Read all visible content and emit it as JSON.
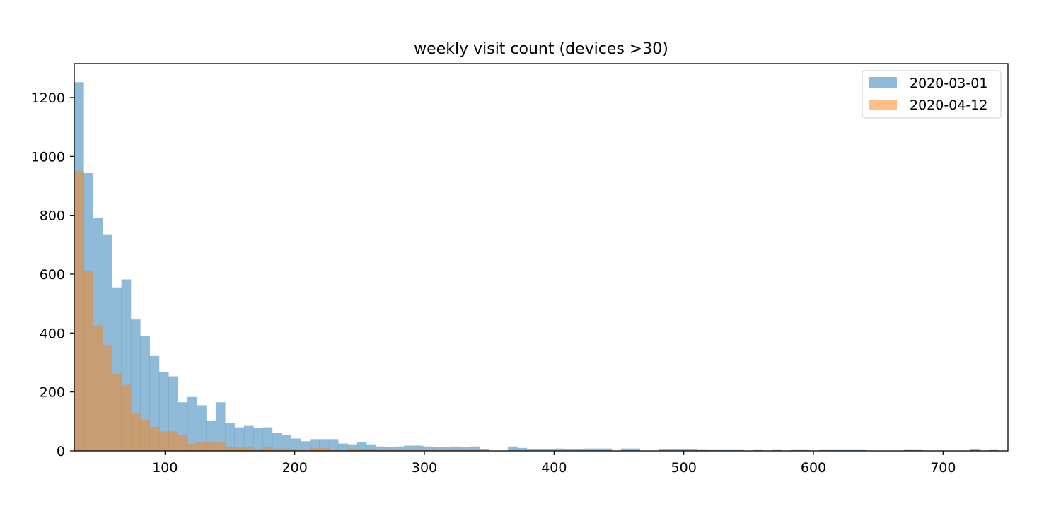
{
  "chart_data": {
    "type": "bar",
    "title": "weekly visit count (devices >30)",
    "xlabel": "",
    "ylabel": "",
    "xlim": [
      30,
      750
    ],
    "ylim": [
      0,
      1315
    ],
    "xticks": [
      100,
      200,
      300,
      400,
      500,
      600,
      700
    ],
    "yticks": [
      0,
      200,
      400,
      600,
      800,
      1000,
      1200
    ],
    "legend_position": "top-right",
    "bin_width": 7.27,
    "series": [
      {
        "name": "2020-03-01",
        "color": "#1f77b4",
        "opacity": 0.5,
        "x_start": 30,
        "values": [
          1252,
          943,
          791,
          735,
          555,
          582,
          446,
          390,
          322,
          268,
          253,
          165,
          183,
          155,
          101,
          165,
          96,
          80,
          85,
          77,
          80,
          60,
          55,
          42,
          33,
          40,
          40,
          40,
          25,
          20,
          30,
          20,
          15,
          12,
          15,
          18,
          18,
          15,
          12,
          12,
          15,
          12,
          15,
          5,
          0,
          0,
          15,
          10,
          5,
          5,
          5,
          8,
          5,
          5,
          8,
          8,
          8,
          0,
          8,
          8,
          0,
          0,
          5,
          5,
          5,
          5,
          3,
          3,
          3,
          3,
          3,
          0,
          3,
          0,
          3,
          0,
          3,
          3,
          0,
          3,
          3,
          3,
          3,
          3,
          0,
          0,
          0,
          0,
          3,
          3,
          0,
          0,
          0,
          0,
          0,
          5,
          0,
          3,
          0,
          0,
          0,
          0,
          3,
          0,
          0
        ]
      },
      {
        "name": "2020-04-12",
        "color": "#ff7f0e",
        "opacity": 0.5,
        "x_start": 30,
        "values": [
          950,
          612,
          426,
          359,
          262,
          224,
          130,
          106,
          82,
          66,
          66,
          55,
          25,
          30,
          30,
          28,
          12,
          12,
          12,
          5,
          12,
          8,
          8,
          5,
          3,
          10,
          10,
          3,
          0,
          8,
          5,
          5,
          3,
          3,
          3,
          3,
          3,
          3,
          3,
          3,
          3,
          3,
          3,
          0,
          0,
          0,
          0,
          0,
          0,
          0,
          0,
          0,
          0,
          0,
          0,
          0,
          0,
          0,
          0,
          0,
          0,
          0,
          0,
          0,
          0,
          0,
          3,
          0,
          0,
          0,
          0,
          0,
          0,
          0,
          0,
          0,
          0,
          0,
          0,
          0,
          0,
          0,
          0,
          0,
          0,
          0,
          0,
          0,
          3,
          0,
          0,
          0,
          0,
          0,
          0,
          0,
          0,
          0,
          0,
          0,
          0,
          0,
          0,
          0,
          0
        ]
      }
    ]
  }
}
